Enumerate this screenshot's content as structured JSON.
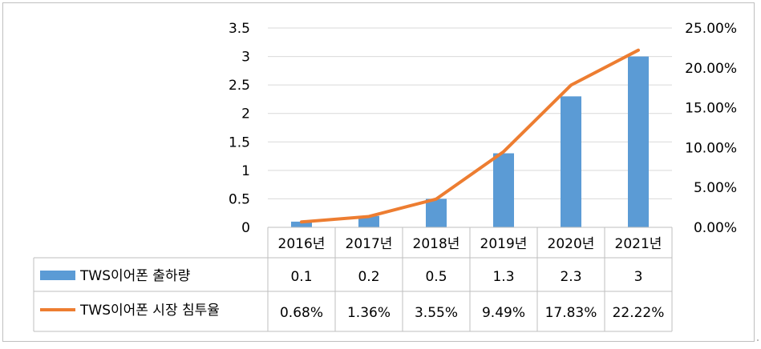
{
  "chart_data": {
    "type": "bar+line",
    "categories": [
      "2016년",
      "2017년",
      "2018년",
      "2019년",
      "2020년",
      "2021년"
    ],
    "series": [
      {
        "name": "TWS이어폰 출하량",
        "type": "bar",
        "axis": "left",
        "color": "#5b9bd5",
        "values": [
          0.1,
          0.2,
          0.5,
          1.3,
          2.3,
          3
        ],
        "table_labels": [
          "0.1",
          "0.2",
          "0.5",
          "1.3",
          "2.3",
          "3"
        ]
      },
      {
        "name": "TWS이어폰 시장 침투율",
        "type": "line",
        "axis": "right",
        "color": "#ed7d31",
        "values": [
          0.68,
          1.36,
          3.55,
          9.49,
          17.83,
          22.22
        ],
        "table_labels": [
          "0.68%",
          "1.36%",
          "3.55%",
          "9.49%",
          "17.83%",
          "22.22%"
        ]
      }
    ],
    "y_left": {
      "ylim": [
        0,
        3.5
      ],
      "ticks": [
        0,
        0.5,
        1,
        1.5,
        2,
        2.5,
        3,
        3.5
      ],
      "tick_labels": [
        "0",
        "0.5",
        "1",
        "1.5",
        "2",
        "2.5",
        "3",
        "3.5"
      ]
    },
    "y_right": {
      "ylim": [
        0,
        25
      ],
      "ticks": [
        0,
        5,
        10,
        15,
        20,
        25
      ],
      "tick_labels": [
        "0.00%",
        "5.00%",
        "10.00%",
        "15.00%",
        "20.00%",
        "25.00%"
      ]
    },
    "grid": true,
    "data_table": true,
    "legend": "in data table"
  }
}
